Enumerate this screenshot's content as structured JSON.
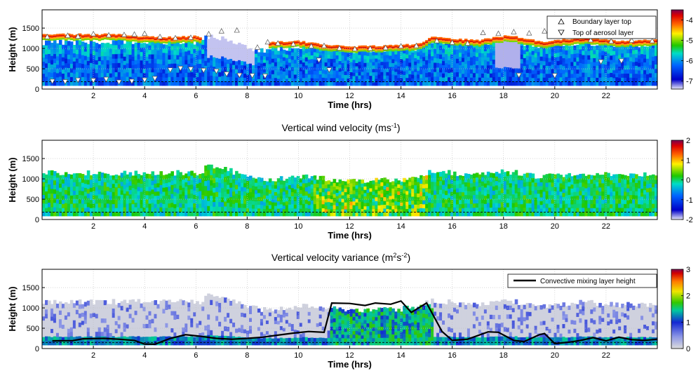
{
  "colors": {
    "background": "#ffffff",
    "grid": "#bdbdbd",
    "black": "#000000",
    "jet": [
      "#e8e8f8",
      "#0000c8",
      "#0064ff",
      "#00dcc8",
      "#1ec800",
      "#fff000",
      "#ff6400",
      "#dc0000",
      "#780050"
    ],
    "variance_scale": [
      "#dcdcdc",
      "#8c96e6",
      "#1428d2",
      "#00c8a0",
      "#32c800",
      "#f0e600",
      "#ff7800",
      "#d20000",
      "#800050"
    ]
  },
  "chart_data": [
    {
      "type": "heatmap",
      "title": "",
      "xlabel": "Time (hrs)",
      "ylabel": "Height (m)",
      "xlim": [
        0,
        24
      ],
      "ylim": [
        0,
        1950
      ],
      "xticks": [
        2,
        4,
        6,
        8,
        10,
        12,
        14,
        16,
        18,
        20,
        22
      ],
      "yticks": [
        0,
        500,
        1000,
        1500
      ],
      "grid": true,
      "reference_line_height": 180,
      "colorbar": {
        "min": -7.4,
        "max": -3.5,
        "ticks": [
          -4,
          -5,
          -6,
          -7
        ]
      },
      "legend": {
        "position": "top-right",
        "entries": [
          {
            "label": "Boundary layer top",
            "marker": "triangle-up"
          },
          {
            "label": "Top of aerosol layer",
            "marker": "triangle-down"
          }
        ]
      },
      "aerosol_top": [
        {
          "x": 0,
          "y": 1150
        },
        {
          "x": 6.2,
          "y": 1150
        },
        {
          "x": 6.4,
          "y": 1300
        },
        {
          "x": 7.2,
          "y": 1250
        },
        {
          "x": 7.9,
          "y": 1050
        },
        {
          "x": 8.6,
          "y": 950
        },
        {
          "x": 9.2,
          "y": 1000
        },
        {
          "x": 10.5,
          "y": 1050
        },
        {
          "x": 12,
          "y": 950
        },
        {
          "x": 14,
          "y": 980
        },
        {
          "x": 14.6,
          "y": 1000
        },
        {
          "x": 15.2,
          "y": 1180
        },
        {
          "x": 17,
          "y": 1100
        },
        {
          "x": 18,
          "y": 1200
        },
        {
          "x": 19.5,
          "y": 1050
        },
        {
          "x": 21,
          "y": 1150
        },
        {
          "x": 22.5,
          "y": 1080
        },
        {
          "x": 24,
          "y": 1100
        }
      ],
      "strong_layer": [
        {
          "x": 1.8,
          "y": 1250
        },
        {
          "x": 3,
          "y": 1250
        },
        {
          "x": 4,
          "y": 1190
        },
        {
          "x": 5,
          "y": 1180
        },
        {
          "x": 6,
          "y": 1200
        },
        {
          "x": 9,
          "y": 1060
        },
        {
          "x": 10,
          "y": 1080
        },
        {
          "x": 11,
          "y": 1000
        },
        {
          "x": 12,
          "y": 950
        },
        {
          "x": 13,
          "y": 960
        },
        {
          "x": 14,
          "y": 980
        },
        {
          "x": 14.8,
          "y": 1020
        },
        {
          "x": 15.2,
          "y": 1180
        },
        {
          "x": 17,
          "y": 1100
        },
        {
          "x": 18.2,
          "y": 1230
        },
        {
          "x": 19.5,
          "y": 1060
        },
        {
          "x": 21,
          "y": 1160
        },
        {
          "x": 22.5,
          "y": 1090
        },
        {
          "x": 24,
          "y": 1120
        }
      ],
      "boundary_layer_top": [
        {
          "x": 0.2,
          "y": 1280
        },
        {
          "x": 1.0,
          "y": 1310
        },
        {
          "x": 1.4,
          "y": 1290
        },
        {
          "x": 2.0,
          "y": 1350
        },
        {
          "x": 2.6,
          "y": 1320
        },
        {
          "x": 3.2,
          "y": 1330
        },
        {
          "x": 3.6,
          "y": 1340
        },
        {
          "x": 4.0,
          "y": 1360
        },
        {
          "x": 4.6,
          "y": 1280
        },
        {
          "x": 5.2,
          "y": 1250
        },
        {
          "x": 5.8,
          "y": 1260
        },
        {
          "x": 6.5,
          "y": 1350
        },
        {
          "x": 7.0,
          "y": 1420
        },
        {
          "x": 7.6,
          "y": 1440
        },
        {
          "x": 8.4,
          "y": 1020
        },
        {
          "x": 8.8,
          "y": 1150
        },
        {
          "x": 9.2,
          "y": 1120
        },
        {
          "x": 9.8,
          "y": 1100
        },
        {
          "x": 10.5,
          "y": 1050
        },
        {
          "x": 11.0,
          "y": 1060
        },
        {
          "x": 11.6,
          "y": 1000
        },
        {
          "x": 12.2,
          "y": 980
        },
        {
          "x": 12.8,
          "y": 990
        },
        {
          "x": 13.4,
          "y": 1010
        },
        {
          "x": 14.0,
          "y": 1050
        },
        {
          "x": 14.6,
          "y": 1060
        },
        {
          "x": 15.4,
          "y": 1180
        },
        {
          "x": 16.0,
          "y": 1140
        },
        {
          "x": 16.6,
          "y": 1120
        },
        {
          "x": 17.2,
          "y": 1380
        },
        {
          "x": 17.8,
          "y": 1360
        },
        {
          "x": 18.4,
          "y": 1400
        },
        {
          "x": 19.0,
          "y": 1370
        },
        {
          "x": 19.6,
          "y": 1420
        },
        {
          "x": 20.2,
          "y": 1350
        },
        {
          "x": 20.8,
          "y": 1380
        },
        {
          "x": 21.4,
          "y": 1200
        },
        {
          "x": 22.2,
          "y": 1170
        },
        {
          "x": 23.0,
          "y": 1190
        },
        {
          "x": 23.8,
          "y": 1180
        }
      ],
      "aerosol_layer_top": [
        {
          "x": 0.4,
          "y": 200
        },
        {
          "x": 0.9,
          "y": 190
        },
        {
          "x": 1.4,
          "y": 230
        },
        {
          "x": 2.0,
          "y": 220
        },
        {
          "x": 2.5,
          "y": 250
        },
        {
          "x": 3.0,
          "y": 180
        },
        {
          "x": 3.5,
          "y": 200
        },
        {
          "x": 4.0,
          "y": 230
        },
        {
          "x": 4.4,
          "y": 270
        },
        {
          "x": 5.0,
          "y": 480
        },
        {
          "x": 5.4,
          "y": 520
        },
        {
          "x": 5.8,
          "y": 500
        },
        {
          "x": 6.3,
          "y": 470
        },
        {
          "x": 6.8,
          "y": 450
        },
        {
          "x": 7.2,
          "y": 380
        },
        {
          "x": 7.7,
          "y": 350
        },
        {
          "x": 8.2,
          "y": 340
        },
        {
          "x": 8.7,
          "y": 330
        },
        {
          "x": 10.8,
          "y": 720
        },
        {
          "x": 11.2,
          "y": 480
        },
        {
          "x": 18.6,
          "y": 350
        },
        {
          "x": 20.0,
          "y": 340
        },
        {
          "x": 21.8,
          "y": 680
        },
        {
          "x": 22.6,
          "y": 700
        }
      ]
    },
    {
      "type": "heatmap",
      "title": "Vertical wind velocity (ms",
      "title_sup": "-1",
      "title_end": ")",
      "xlabel": "Time (hrs)",
      "ylabel": "Height (m)",
      "xlim": [
        0,
        24
      ],
      "ylim": [
        0,
        1950
      ],
      "xticks": [
        2,
        4,
        6,
        8,
        10,
        12,
        14,
        16,
        18,
        20,
        22
      ],
      "yticks": [
        0,
        500,
        1000,
        1500
      ],
      "grid": true,
      "reference_line_height": 180,
      "colorbar": {
        "min": -2,
        "max": 2,
        "ticks": [
          2,
          1,
          0,
          -1,
          -2
        ]
      }
    },
    {
      "type": "heatmap",
      "title": "Vertical velocity variance (m",
      "title_sup1": "2",
      "title_mid": "s",
      "title_sup2": "-2",
      "title_end": ")",
      "xlabel": "Time (hrs)",
      "ylabel": "Height (m)",
      "xlim": [
        0,
        24
      ],
      "ylim": [
        0,
        1950
      ],
      "xticks": [
        2,
        4,
        6,
        8,
        10,
        12,
        14,
        16,
        18,
        20,
        22
      ],
      "yticks": [
        0,
        500,
        1000,
        1500
      ],
      "grid": true,
      "reference_line_height": 150,
      "colorbar": {
        "min": 0,
        "max": 3,
        "ticks": [
          3,
          2,
          1,
          0
        ]
      },
      "legend": {
        "position": "top-right",
        "entries": [
          {
            "label": "Convective mixing layer height",
            "marker": "line"
          }
        ]
      },
      "series": [
        {
          "name": "Convective mixing layer height",
          "points": [
            {
              "x": 0.4,
              "y": 190
            },
            {
              "x": 1.2,
              "y": 195
            },
            {
              "x": 1.6,
              "y": 240
            },
            {
              "x": 2.4,
              "y": 250
            },
            {
              "x": 3.0,
              "y": 230
            },
            {
              "x": 3.6,
              "y": 200
            },
            {
              "x": 4.0,
              "y": 110
            },
            {
              "x": 4.4,
              "y": 105
            },
            {
              "x": 5.0,
              "y": 250
            },
            {
              "x": 5.6,
              "y": 340
            },
            {
              "x": 6.2,
              "y": 300
            },
            {
              "x": 6.8,
              "y": 250
            },
            {
              "x": 7.4,
              "y": 230
            },
            {
              "x": 8.0,
              "y": 250
            },
            {
              "x": 8.6,
              "y": 280
            },
            {
              "x": 9.2,
              "y": 330
            },
            {
              "x": 9.8,
              "y": 380
            },
            {
              "x": 10.4,
              "y": 420
            },
            {
              "x": 11.0,
              "y": 400
            },
            {
              "x": 11.3,
              "y": 1120
            },
            {
              "x": 12.0,
              "y": 1110
            },
            {
              "x": 12.6,
              "y": 1060
            },
            {
              "x": 13.0,
              "y": 1120
            },
            {
              "x": 13.6,
              "y": 1090
            },
            {
              "x": 14.0,
              "y": 1170
            },
            {
              "x": 14.4,
              "y": 890
            },
            {
              "x": 15.0,
              "y": 1120
            },
            {
              "x": 15.6,
              "y": 420
            },
            {
              "x": 16.0,
              "y": 200
            },
            {
              "x": 16.6,
              "y": 230
            },
            {
              "x": 17.4,
              "y": 410
            },
            {
              "x": 17.8,
              "y": 400
            },
            {
              "x": 18.4,
              "y": 200
            },
            {
              "x": 18.8,
              "y": 170
            },
            {
              "x": 19.4,
              "y": 340
            },
            {
              "x": 19.6,
              "y": 370
            },
            {
              "x": 20.0,
              "y": 120
            },
            {
              "x": 20.6,
              "y": 160
            },
            {
              "x": 21.0,
              "y": 200
            },
            {
              "x": 21.5,
              "y": 270
            },
            {
              "x": 22.0,
              "y": 190
            },
            {
              "x": 22.5,
              "y": 280
            },
            {
              "x": 23.0,
              "y": 220
            },
            {
              "x": 23.5,
              "y": 200
            },
            {
              "x": 24.0,
              "y": 230
            }
          ]
        }
      ],
      "active_band": [
        11.2,
        15.2
      ],
      "active_band_height": 1100
    }
  ]
}
